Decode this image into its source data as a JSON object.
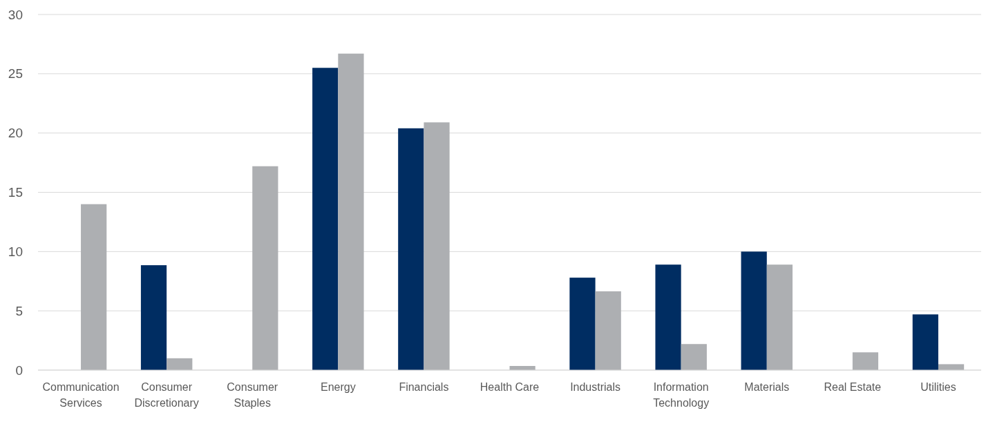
{
  "chart_data": {
    "type": "bar",
    "categories": [
      "Communication Services",
      "Consumer Discretionary",
      "Consumer Staples",
      "Energy",
      "Financials",
      "Health Care",
      "Industrials",
      "Information Technology",
      "Materials",
      "Real Estate",
      "Utilities"
    ],
    "series": [
      {
        "color": "#002d62",
        "values": [
          0,
          8.85,
          0,
          25.5,
          20.4,
          0,
          7.8,
          8.9,
          10.0,
          0,
          4.7
        ]
      },
      {
        "color": "#adafb2",
        "values": [
          14.0,
          1.0,
          17.2,
          26.7,
          20.9,
          0.35,
          6.65,
          2.2,
          8.9,
          1.5,
          0.5
        ]
      }
    ],
    "ylim": [
      0,
      30
    ],
    "yticks": [
      0,
      5,
      10,
      15,
      20,
      25,
      30
    ],
    "grid": "y"
  }
}
